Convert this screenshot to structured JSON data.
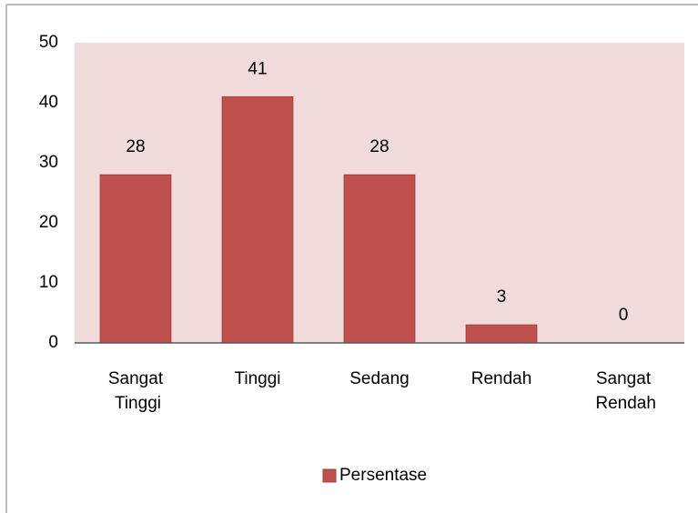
{
  "chart_data": {
    "type": "bar",
    "categories": [
      "Sangat Tinggi",
      "Tinggi",
      "Sedang",
      "Rendah",
      "Sangat Rendah"
    ],
    "series": [
      {
        "name": "Persentase",
        "color": "#c0504d",
        "values": [
          28,
          41,
          28,
          3,
          0
        ]
      }
    ],
    "ylim": [
      0,
      50
    ],
    "yticks": [
      0,
      10,
      20,
      30,
      40,
      50
    ],
    "grid": false,
    "legend": "bottom",
    "plot_background": "#f2dcdb"
  }
}
